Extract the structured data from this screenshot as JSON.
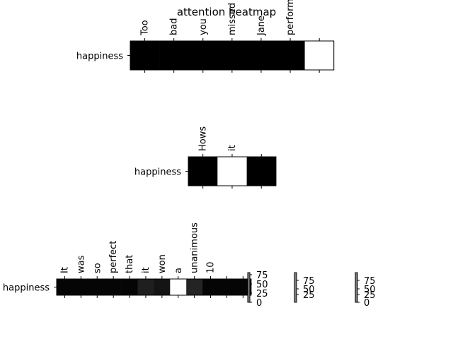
{
  "title": "attention heatmap",
  "chart_data": [
    {
      "type": "heatmap",
      "row_labels": [
        "happiness"
      ],
      "col_labels": [
        "Too",
        "bad",
        "you",
        "missed",
        "Jane",
        "performance",
        ""
      ],
      "values": [
        [
          0,
          0,
          0,
          0,
          0,
          0,
          100
        ]
      ],
      "colormap": "gray"
    },
    {
      "type": "heatmap",
      "row_labels": [
        "happiness"
      ],
      "col_labels": [
        "Hows",
        "it",
        ""
      ],
      "values": [
        [
          0,
          100,
          0
        ]
      ],
      "colormap": "gray"
    },
    {
      "type": "heatmap",
      "row_labels": [
        "happiness"
      ],
      "col_labels": [
        "It",
        "was",
        "so",
        "perfect",
        "that",
        "it",
        "won",
        "a",
        "unanimous",
        "10",
        "",
        ""
      ],
      "values": [
        [
          2,
          2,
          2,
          2,
          2,
          12,
          8,
          100,
          14,
          2,
          2,
          2
        ]
      ],
      "colormap": "gray"
    }
  ],
  "colorbars": [
    {
      "ticks": [
        "75",
        "50",
        "25",
        "0"
      ]
    },
    {
      "ticks": [
        "75",
        "50",
        "25"
      ]
    },
    {
      "ticks": [
        "75",
        "50",
        "25",
        "0"
      ]
    }
  ]
}
